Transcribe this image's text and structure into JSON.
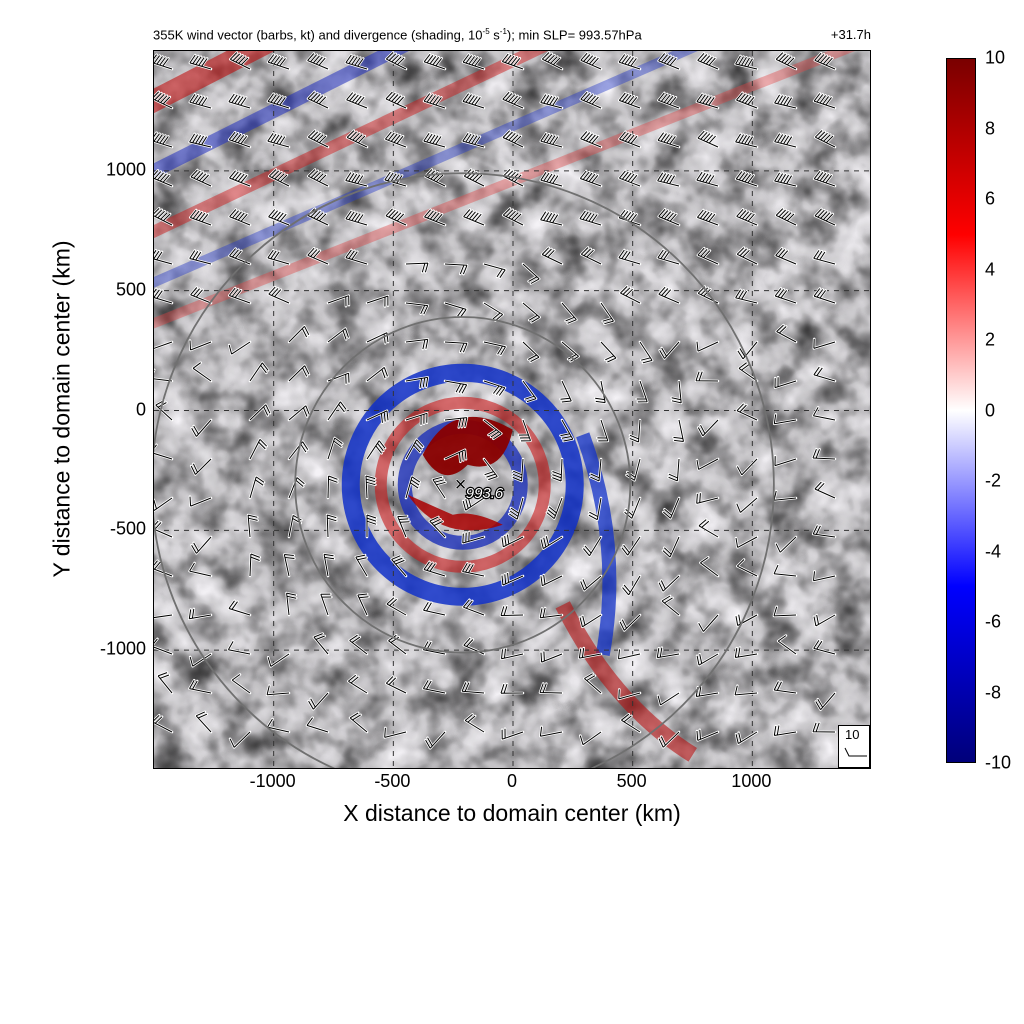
{
  "title": {
    "text_prefix": "355K wind vector (barbs, kt) and divergence (shading, 10",
    "exponent": "-5",
    "unit_mid": " s",
    "unit_exp": "-1",
    "text_suffix": "); min SLP= 993.57hPa",
    "time": "+31.7h"
  },
  "colors": {
    "divergence_max": "#7a0000",
    "divergence_pos": "#ff0000",
    "zero": "#ffffff",
    "divergence_neg": "#0000ff",
    "divergence_min": "#00007a",
    "circle": "#707070"
  },
  "chart_data": {
    "type": "heatmap",
    "xlabel": "X distance to domain center (km)",
    "ylabel": "Y distance to domain center (km)",
    "xlim": [
      -1500,
      1500
    ],
    "ylim": [
      -1500,
      1500
    ],
    "xticks": [
      -1000,
      -500,
      0,
      500,
      1000
    ],
    "yticks": [
      -1000,
      -500,
      0,
      500,
      1000
    ],
    "grid": "dashed",
    "colorbar": {
      "ticks": [
        10,
        8,
        6,
        4,
        2,
        0,
        -2,
        -4,
        -6,
        -8,
        -10
      ],
      "range": [
        -10,
        10
      ]
    },
    "storm_center": {
      "x": -210,
      "y": -310,
      "label": "993.6",
      "marker": "×"
    },
    "range_rings_km": [
      {
        "center_x": -210,
        "center_y": -310,
        "radius": 700
      },
      {
        "center_x": -210,
        "center_y": -310,
        "radius": 1300
      }
    ],
    "barb_reference": {
      "label": "10"
    }
  }
}
